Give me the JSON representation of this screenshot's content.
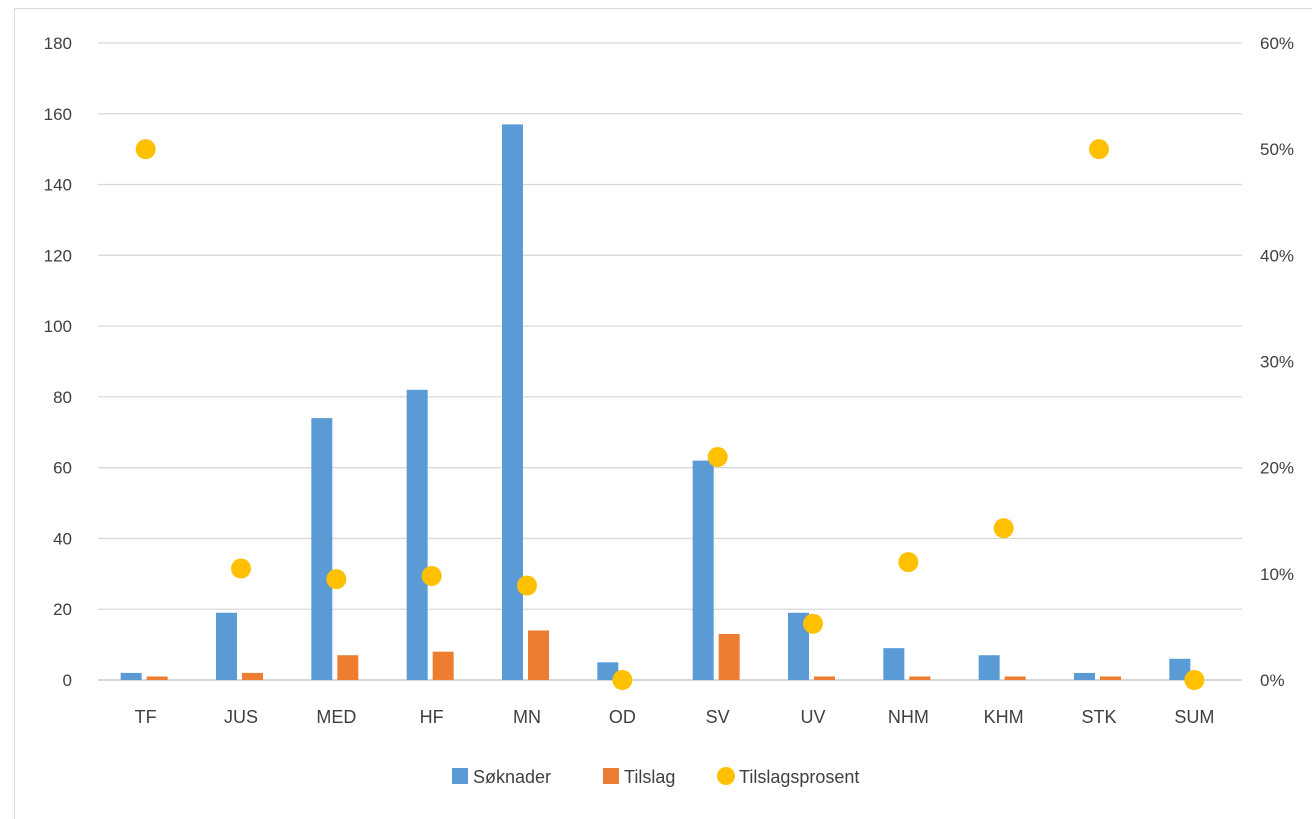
{
  "chart_data": {
    "type": "bar",
    "title": "",
    "categories": [
      "TF",
      "JUS",
      "MED",
      "HF",
      "MN",
      "OD",
      "SV",
      "UV",
      "NHM",
      "KHM",
      "STK",
      "SUM"
    ],
    "series": [
      {
        "name": "Søknader",
        "kind": "bar",
        "axis": "left",
        "color": "#5b9bd5",
        "values": [
          2,
          19,
          74,
          82,
          157,
          5,
          62,
          19,
          9,
          7,
          2,
          6
        ]
      },
      {
        "name": "Tilslag",
        "kind": "bar",
        "axis": "left",
        "color": "#ed7d31",
        "values": [
          1,
          2,
          7,
          8,
          14,
          0,
          13,
          1,
          1,
          1,
          1,
          0
        ]
      },
      {
        "name": "Tilslagsprosent",
        "kind": "scatter",
        "axis": "right",
        "color": "#ffc000",
        "values": [
          0.5,
          0.105,
          0.095,
          0.098,
          0.089,
          0,
          0.21,
          0.053,
          0.111,
          0.143,
          0.5,
          0
        ]
      }
    ],
    "yAxisLeft": {
      "min": 0,
      "max": 180,
      "step": 20,
      "ticks": [
        "0",
        "20",
        "40",
        "60",
        "80",
        "100",
        "120",
        "140",
        "160",
        "180"
      ]
    },
    "yAxisRight": {
      "min": 0,
      "max": 0.6,
      "step": 0.1,
      "ticks": [
        "0%",
        "10%",
        "20%",
        "30%",
        "40%",
        "50%",
        "60%"
      ]
    },
    "grid": true,
    "legend": "bottom"
  }
}
